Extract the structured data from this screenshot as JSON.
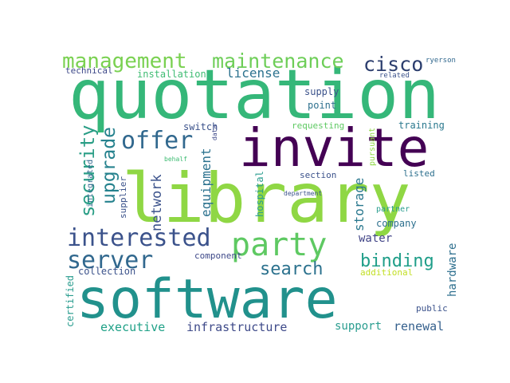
{
  "words": [
    {
      "text": "quotation",
      "color": "#35b779"
    },
    {
      "text": "library",
      "color": "#8fd744"
    },
    {
      "text": "invite",
      "color": "#440154"
    },
    {
      "text": "software",
      "color": "#21918c"
    },
    {
      "text": "party",
      "color": "#5ec962"
    },
    {
      "text": "interested",
      "color": "#3b528b"
    },
    {
      "text": "server",
      "color": "#31688e"
    },
    {
      "text": "offer",
      "color": "#31688e"
    },
    {
      "text": "management",
      "color": "#7ad151"
    },
    {
      "text": "maintenance",
      "color": "#6ece58"
    },
    {
      "text": "cisco",
      "color": "#2c3e6e"
    },
    {
      "text": "upgrade",
      "color": "#26828e"
    },
    {
      "text": "security",
      "color": "#2a9e86"
    },
    {
      "text": "search",
      "color": "#2c728e"
    },
    {
      "text": "binding",
      "color": "#1f9e89"
    },
    {
      "text": "network",
      "color": "#3b528b"
    },
    {
      "text": "equipment",
      "color": "#2c728e"
    },
    {
      "text": "storage",
      "color": "#2a788e"
    },
    {
      "text": "hardware",
      "color": "#2e6f8e"
    },
    {
      "text": "license",
      "color": "#2c728e"
    },
    {
      "text": "infrastructure",
      "color": "#3e4a89"
    },
    {
      "text": "executive",
      "color": "#1fa187"
    },
    {
      "text": "support",
      "color": "#2a9d8f"
    },
    {
      "text": "renewal",
      "color": "#35608d"
    },
    {
      "text": "water",
      "color": "#414487"
    },
    {
      "text": "company",
      "color": "#2d708e"
    },
    {
      "text": "collection",
      "color": "#3b528b"
    },
    {
      "text": "component",
      "color": "#3e4989"
    },
    {
      "text": "supply",
      "color": "#3b528b"
    },
    {
      "text": "point",
      "color": "#2d708e"
    },
    {
      "text": "switch",
      "color": "#3b528b"
    },
    {
      "text": "training",
      "color": "#2a788e"
    },
    {
      "text": "section",
      "color": "#3b528b"
    },
    {
      "text": "listed",
      "color": "#2d708e"
    },
    {
      "text": "requesting",
      "color": "#5ec962"
    },
    {
      "text": "pursuant",
      "color": "#8fd744"
    },
    {
      "text": "hospital",
      "color": "#2a9d8f"
    },
    {
      "text": "supplier",
      "color": "#3b528b"
    },
    {
      "text": "integrated",
      "color": "#31688e"
    },
    {
      "text": "certified",
      "color": "#2a9d8f"
    },
    {
      "text": "additional",
      "color": "#c2df23"
    },
    {
      "text": "public",
      "color": "#3b528b"
    },
    {
      "text": "partner",
      "color": "#2a9d8f"
    },
    {
      "text": "technical",
      "color": "#3e4989"
    },
    {
      "text": "installation",
      "color": "#3fbc73"
    },
    {
      "text": "related",
      "color": "#3b528b"
    },
    {
      "text": "ryerson",
      "color": "#31688e"
    },
    {
      "text": "data",
      "color": "#3e4989"
    },
    {
      "text": "behalf",
      "color": "#3fbc73"
    },
    {
      "text": "department",
      "color": "#3b528b"
    }
  ]
}
